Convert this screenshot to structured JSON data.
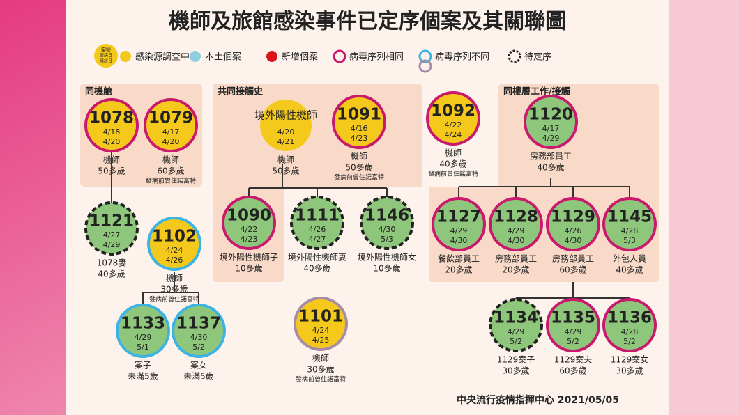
{
  "header": {
    "title": "機師及旅館感染事件已定序個案及其關聯圖"
  },
  "legend": {
    "key": [
      "案號",
      "發病日",
      "確診日"
    ],
    "items": [
      "感染源調查中",
      "本土個案",
      "新增個案",
      "病毒序列相同",
      "病毒序列不同",
      "待定序"
    ]
  },
  "groups": [
    "同機艙",
    "共同接觸史",
    "同樓層工作/接觸"
  ],
  "nodes": [
    {
      "id": "1078",
      "onset": "4/18",
      "confirmed": "4/20",
      "desc": [
        "機師",
        "50多歲"
      ]
    },
    {
      "id": "1079",
      "onset": "4/17",
      "confirmed": "4/20",
      "desc": [
        "機師",
        "60多歲",
        "發病前曾住諾富特"
      ]
    },
    {
      "id": "1121",
      "onset": "4/27",
      "confirmed": "4/29",
      "desc": [
        "1078妻",
        "40多歲"
      ]
    },
    {
      "id": "1102",
      "onset": "4/24",
      "confirmed": "4/26",
      "desc": [
        "機師",
        "30多歲",
        "發病前曾住諾富特"
      ]
    },
    {
      "id": "1133",
      "onset": "4/29",
      "confirmed": "5/1",
      "desc": [
        "案子",
        "未滿5歲"
      ]
    },
    {
      "id": "1137",
      "onset": "4/30",
      "confirmed": "5/2",
      "desc": [
        "案女",
        "未滿5歲"
      ]
    },
    {
      "id": "境外陽性機師",
      "onset": "4/20",
      "confirmed": "4/21",
      "desc": [
        "機師",
        "50多歲"
      ]
    },
    {
      "id": "1091",
      "onset": "4/16",
      "confirmed": "4/23",
      "desc": [
        "機師",
        "50多歲",
        "發病前曾住諾富特"
      ]
    },
    {
      "id": "1090",
      "onset": "4/22",
      "confirmed": "4/23",
      "desc": [
        "境外陽性機師子",
        "10多歲"
      ]
    },
    {
      "id": "1111",
      "onset": "4/26",
      "confirmed": "4/27",
      "desc": [
        "境外陽性機師妻",
        "40多歲"
      ]
    },
    {
      "id": "1146",
      "onset": "4/30",
      "confirmed": "5/3",
      "desc": [
        "境外陽性機師女",
        "10多歲"
      ]
    },
    {
      "id": "1101",
      "onset": "4/24",
      "confirmed": "4/25",
      "desc": [
        "機師",
        "30多歲",
        "發病前曾住諾富特"
      ]
    },
    {
      "id": "1092",
      "onset": "4/22",
      "confirmed": "4/24",
      "desc": [
        "機師",
        "40多歲",
        "發病前曾住諾富特"
      ]
    },
    {
      "id": "1120",
      "onset": "4/17",
      "confirmed": "4/29",
      "desc": [
        "房務部員工",
        "40多歲"
      ]
    },
    {
      "id": "1127",
      "onset": "4/29",
      "confirmed": "4/30",
      "desc": [
        "餐飲部員工",
        "20多歲"
      ]
    },
    {
      "id": "1128",
      "onset": "4/29",
      "confirmed": "4/30",
      "desc": [
        "房務部員工",
        "20多歲"
      ]
    },
    {
      "id": "1129",
      "onset": "4/26",
      "confirmed": "4/30",
      "desc": [
        "房務部員工",
        "60多歲"
      ]
    },
    {
      "id": "1145",
      "onset": "4/28",
      "confirmed": "5/3",
      "desc": [
        "外包人員",
        "40多歲"
      ]
    },
    {
      "id": "1134",
      "onset": "4/29",
      "confirmed": "5/2",
      "desc": [
        "1129案子",
        "30多歲"
      ]
    },
    {
      "id": "1135",
      "onset": "4/29",
      "confirmed": "5/2",
      "desc": [
        "1129案夫",
        "60多歲"
      ]
    },
    {
      "id": "1136",
      "onset": "4/28",
      "confirmed": "5/2",
      "desc": [
        "1129案女",
        "30多歲"
      ]
    }
  ],
  "footer": "中央流行疫情指揮中心 2021/05/05"
}
